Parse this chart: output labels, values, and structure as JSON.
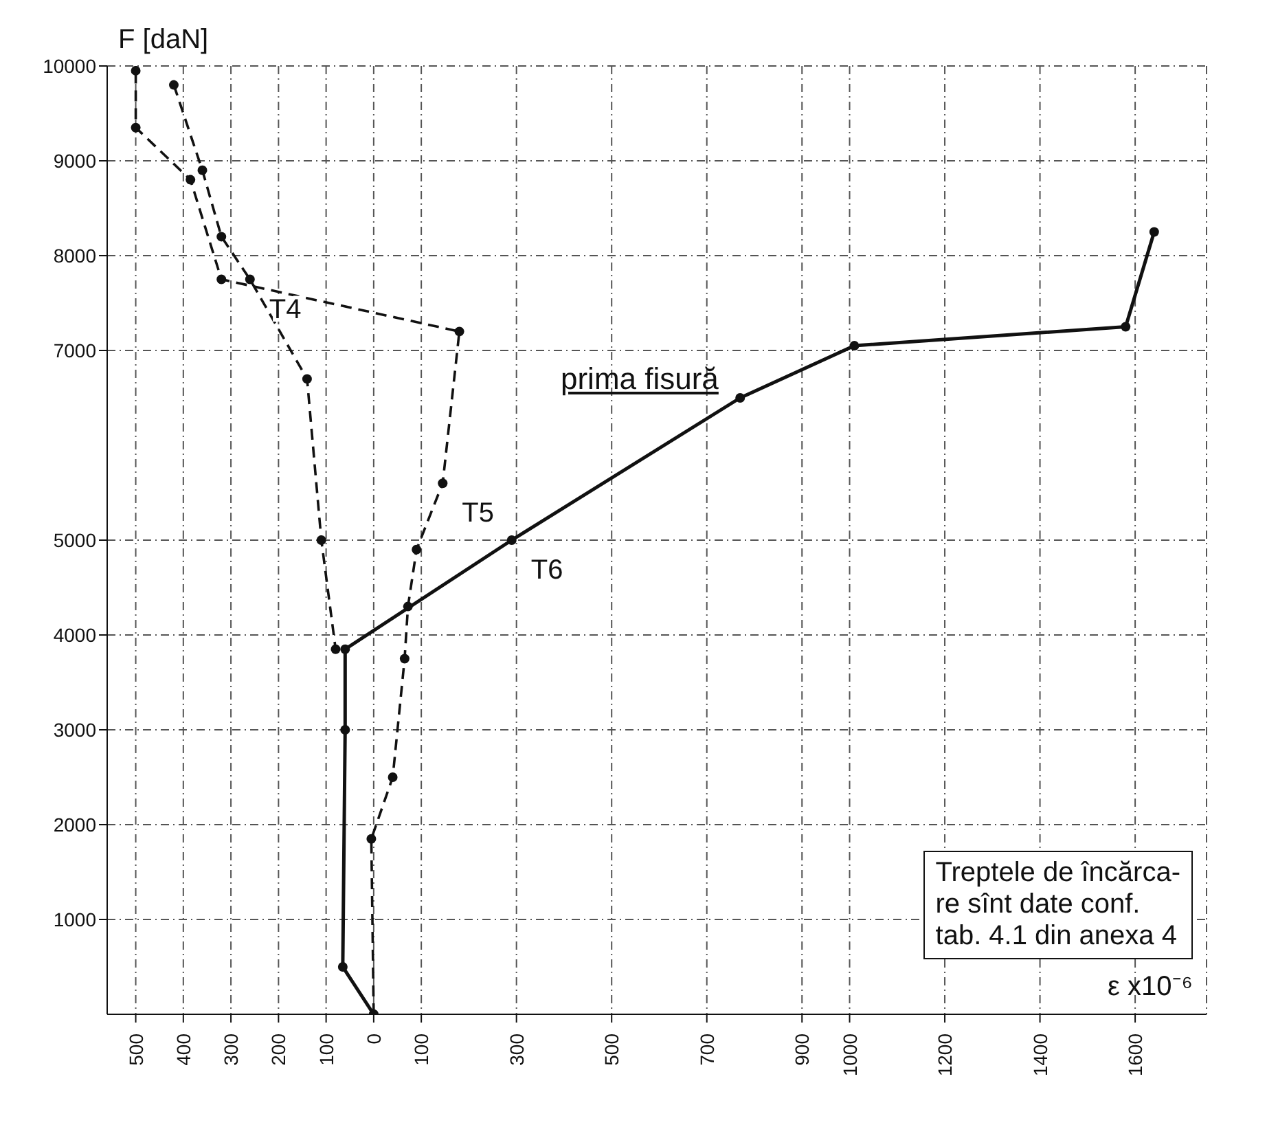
{
  "chart_data": {
    "type": "line",
    "xlabel": "ε x10⁻⁶",
    "ylabel": "F [daN]",
    "xlim": [
      -560,
      1750
    ],
    "ylim": [
      0,
      10000
    ],
    "xticks": [
      {
        "value": -500,
        "label": "500"
      },
      {
        "value": -400,
        "label": "400"
      },
      {
        "value": -300,
        "label": "300"
      },
      {
        "value": -200,
        "label": "200"
      },
      {
        "value": -100,
        "label": "100"
      },
      0,
      100,
      300,
      500,
      700,
      900,
      1000,
      1200,
      1400,
      1600
    ],
    "yticks": [
      1000,
      2000,
      3000,
      4000,
      5000,
      7000,
      8000,
      9000,
      10000
    ],
    "grid": true,
    "marker": "circle",
    "legend": false,
    "series": [
      {
        "name": "T4",
        "color": "#111111",
        "line_style": "dashed",
        "x": [
          -420,
          -360,
          -320,
          -260,
          -140,
          -110,
          -80
        ],
        "values": [
          9800,
          8900,
          8200,
          7750,
          6700,
          5000,
          3850
        ]
      },
      {
        "name": "T5",
        "color": "#111111",
        "line_style": "dashed",
        "x": [
          0,
          -5,
          40,
          65,
          72,
          90,
          145,
          180,
          -320,
          -385,
          -500,
          -500
        ],
        "values": [
          0,
          1850,
          2500,
          3750,
          4300,
          4900,
          5600,
          7200,
          7750,
          8800,
          9350,
          9950
        ]
      },
      {
        "name": "T6",
        "color": "#111111",
        "line_style": "solid",
        "x": [
          0,
          -65,
          -60,
          -60,
          290,
          770,
          1010,
          1580,
          1640
        ],
        "values": [
          0,
          500,
          3000,
          3850,
          5000,
          6500,
          7050,
          7250,
          8250
        ]
      }
    ],
    "annotations": [
      "prima fisură",
      "Treptele de încărca-\nre sînt date conf.\ntab. 4.1 din anexa 4"
    ]
  }
}
